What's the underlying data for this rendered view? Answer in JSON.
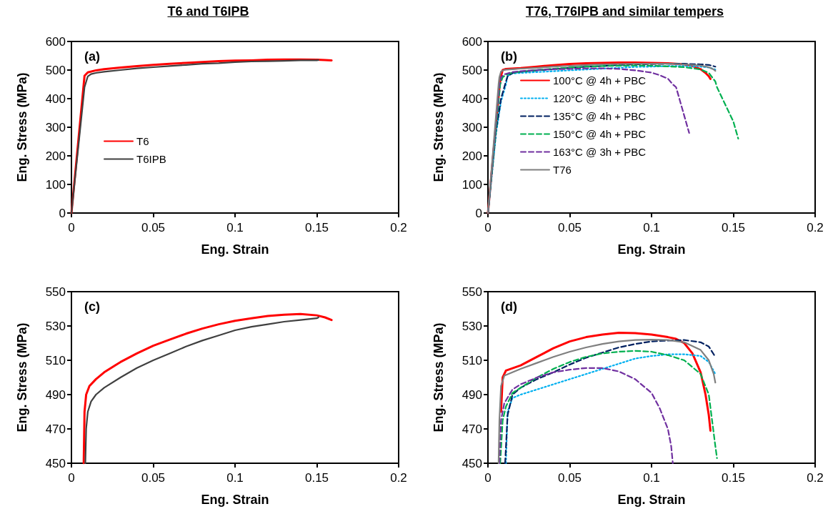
{
  "chart_data": [
    {
      "type": "line",
      "title": "T6 and T6IPB",
      "xlabel": "Eng. Strain",
      "ylabel": "Eng. Stress (MPa)",
      "annotations": [
        "(a)"
      ],
      "xlim": [
        0,
        0.2
      ],
      "xticks": [
        0,
        0.05,
        0.1,
        0.15,
        0.2
      ],
      "ylim": [
        0,
        600
      ],
      "yticks": [
        0,
        100,
        200,
        300,
        400,
        500,
        600
      ],
      "grid": false,
      "legend": "bottom left",
      "marker": "none",
      "series": [
        {
          "name": "T6",
          "color": "#ff0000",
          "line_style": "solid",
          "x": [
            0,
            0.008,
            0.01,
            0.015,
            0.02,
            0.03,
            0.04,
            0.05,
            0.06,
            0.07,
            0.08,
            0.09,
            0.1,
            0.11,
            0.12,
            0.13,
            0.14,
            0.15,
            0.155,
            0.159
          ],
          "values": [
            0,
            480,
            492,
            499,
            503,
            509,
            514,
            518,
            522,
            525,
            528,
            531,
            533,
            534,
            536,
            537,
            537,
            536,
            535,
            534
          ]
        },
        {
          "name": "T6IPB",
          "color": "#404040",
          "line_style": "solid",
          "x": [
            0,
            0.008,
            0.01,
            0.012,
            0.015,
            0.02,
            0.03,
            0.04,
            0.05,
            0.06,
            0.07,
            0.08,
            0.09,
            0.1,
            0.11,
            0.12,
            0.13,
            0.14,
            0.15,
            0.151
          ],
          "values": [
            0,
            440,
            478,
            486,
            490,
            494,
            500,
            506,
            510,
            514,
            518,
            522,
            524,
            528,
            530,
            531,
            532,
            534,
            534,
            535
          ]
        }
      ]
    },
    {
      "type": "line",
      "title": "T76, T76IPB and similar tempers",
      "xlabel": "Eng. Strain",
      "ylabel": "Eng. Stress (MPa)",
      "annotations": [
        "(b)"
      ],
      "xlim": [
        0,
        0.2
      ],
      "xticks": [
        0,
        0.05,
        0.1,
        0.15,
        0.2
      ],
      "ylim": [
        0,
        600
      ],
      "yticks": [
        0,
        100,
        200,
        300,
        400,
        500,
        600
      ],
      "grid": false,
      "legend": "left",
      "marker": "none",
      "series": [
        {
          "name": "100°C @ 4h + PBC",
          "color": "#ff0000",
          "line_style": "solid",
          "x": [
            0,
            0.0072,
            0.008,
            0.009,
            0.011,
            0.02,
            0.03,
            0.04,
            0.05,
            0.06,
            0.07,
            0.08,
            0.09,
            0.1,
            0.11,
            0.115,
            0.12,
            0.125,
            0.13,
            0.133,
            0.135,
            0.136
          ],
          "values": [
            0,
            450,
            480,
            500,
            504,
            507,
            512,
            517,
            521,
            524,
            525,
            526,
            526,
            525,
            524,
            522,
            520,
            514,
            503,
            490,
            478,
            469
          ]
        },
        {
          "name": "120°C @ 4h + PBC",
          "color": "#00b0f0",
          "line_style": "dotted",
          "x": [
            0,
            0.005,
            0.008,
            0.011,
            0.012,
            0.015,
            0.02,
            0.03,
            0.04,
            0.05,
            0.06,
            0.07,
            0.08,
            0.09,
            0.1,
            0.11,
            0.12,
            0.13,
            0.135,
            0.139
          ],
          "values": [
            0,
            280,
            390,
            450,
            480,
            488,
            490,
            493,
            496,
            499,
            502,
            505,
            508,
            511,
            512,
            514,
            514,
            512,
            509,
            502
          ]
        },
        {
          "name": "135°C @ 4h + PBC",
          "color": "#002060",
          "line_style": "dashed",
          "x": [
            0,
            0.005,
            0.008,
            0.0105,
            0.012,
            0.015,
            0.02,
            0.03,
            0.04,
            0.05,
            0.06,
            0.07,
            0.08,
            0.09,
            0.1,
            0.11,
            0.12,
            0.13,
            0.135,
            0.139
          ],
          "values": [
            0,
            290,
            400,
            450,
            478,
            490,
            494,
            499,
            503,
            508,
            512,
            514,
            518,
            520,
            521,
            522,
            522,
            520,
            518,
            512
          ]
        },
        {
          "name": "150°C @ 4h + PBC",
          "color": "#00b050",
          "line_style": "dashed",
          "x": [
            0,
            0.0075,
            0.009,
            0.011,
            0.015,
            0.02,
            0.03,
            0.04,
            0.05,
            0.06,
            0.07,
            0.08,
            0.09,
            0.1,
            0.11,
            0.12,
            0.13,
            0.135,
            0.137,
            0.139,
            0.14,
            0.145,
            0.15,
            0.153
          ],
          "values": [
            0,
            450,
            475,
            483,
            491,
            494,
            500,
            505,
            509,
            512,
            514,
            515,
            516,
            515,
            513,
            510,
            502,
            490,
            475,
            460,
            440,
            380,
            320,
            260
          ]
        },
        {
          "name": "163°C @ 3h + PBC",
          "color": "#7030a0",
          "line_style": "dashed",
          "x": [
            0,
            0.007,
            0.008,
            0.01,
            0.015,
            0.02,
            0.03,
            0.04,
            0.05,
            0.06,
            0.07,
            0.08,
            0.09,
            0.1,
            0.105,
            0.11,
            0.113,
            0.115,
            0.118,
            0.121,
            0.123
          ],
          "values": [
            0,
            450,
            475,
            485,
            493,
            496,
            500,
            503,
            504,
            506,
            506,
            504,
            499,
            491,
            482,
            470,
            450,
            440,
            380,
            320,
            280
          ]
        },
        {
          "name": "T76",
          "color": "#7f7f7f",
          "line_style": "solid",
          "x": [
            0,
            0.0065,
            0.007,
            0.008,
            0.01,
            0.015,
            0.02,
            0.03,
            0.04,
            0.05,
            0.06,
            0.07,
            0.08,
            0.09,
            0.1,
            0.11,
            0.12,
            0.13,
            0.135,
            0.138,
            0.139
          ],
          "values": [
            0,
            450,
            475,
            495,
            501,
            503,
            505,
            508,
            512,
            515,
            518,
            520,
            521,
            522,
            522,
            522,
            520,
            516,
            510,
            502,
            497
          ]
        }
      ]
    },
    {
      "type": "line",
      "xlabel": "Eng. Strain",
      "ylabel": "Eng. Stress (MPa)",
      "annotations": [
        "(c)"
      ],
      "xlim": [
        0,
        0.2
      ],
      "xticks": [
        0,
        0.05,
        0.1,
        0.15,
        0.2
      ],
      "ylim": [
        450,
        550
      ],
      "yticks": [
        450,
        470,
        490,
        510,
        530,
        550
      ],
      "grid": false,
      "marker": "none",
      "series": [
        {
          "color": "#ff0000",
          "line_style": "solid",
          "x": [
            0.0075,
            0.008,
            0.009,
            0.011,
            0.015,
            0.02,
            0.03,
            0.04,
            0.05,
            0.06,
            0.07,
            0.08,
            0.09,
            0.1,
            0.11,
            0.12,
            0.13,
            0.14,
            0.15,
            0.155,
            0.159
          ],
          "values": [
            450,
            480,
            490,
            495,
            499,
            503,
            509,
            514,
            518.5,
            522,
            525.5,
            528.5,
            531,
            533,
            534.5,
            535.8,
            536.6,
            537,
            536.2,
            535,
            533.5
          ]
        },
        {
          "color": "#404040",
          "line_style": "solid",
          "x": [
            0.0085,
            0.009,
            0.01,
            0.012,
            0.015,
            0.02,
            0.03,
            0.04,
            0.05,
            0.06,
            0.07,
            0.08,
            0.09,
            0.1,
            0.11,
            0.12,
            0.13,
            0.14,
            0.15,
            0.151
          ],
          "values": [
            450,
            470,
            480,
            486,
            490,
            494,
            500,
            505.5,
            510,
            514,
            518,
            521.5,
            524.5,
            527.5,
            529.5,
            531,
            532.5,
            533.5,
            534.5,
            535
          ]
        }
      ]
    },
    {
      "type": "line",
      "xlabel": "Eng. Strain",
      "ylabel": "Eng. Stress (MPa)",
      "annotations": [
        "(d)"
      ],
      "xlim": [
        0,
        0.2
      ],
      "xticks": [
        0,
        0.05,
        0.1,
        0.15,
        0.2
      ],
      "ylim": [
        450,
        550
      ],
      "yticks": [
        450,
        470,
        490,
        510,
        530,
        550
      ],
      "grid": false,
      "marker": "none",
      "series": [
        {
          "color": "#ff0000",
          "line_style": "solid",
          "x": [
            0.008,
            0.009,
            0.011,
            0.02,
            0.03,
            0.04,
            0.05,
            0.06,
            0.07,
            0.08,
            0.09,
            0.1,
            0.11,
            0.115,
            0.12,
            0.125,
            0.13,
            0.133,
            0.135,
            0.136
          ],
          "values": [
            480,
            500,
            504,
            507,
            512,
            517,
            521,
            523.5,
            525,
            526,
            525.8,
            525,
            523.5,
            522.5,
            520,
            514,
            503,
            490,
            478,
            469
          ]
        },
        {
          "color": "#00b0f0",
          "line_style": "dotted",
          "x": [
            0.011,
            0.012,
            0.015,
            0.02,
            0.03,
            0.04,
            0.05,
            0.06,
            0.07,
            0.08,
            0.09,
            0.1,
            0.11,
            0.12,
            0.13,
            0.135,
            0.139
          ],
          "values": [
            450,
            480,
            488,
            490,
            493,
            496,
            499,
            502,
            505,
            508,
            511,
            512.5,
            513.5,
            513.5,
            512.5,
            509,
            502
          ]
        },
        {
          "color": "#002060",
          "line_style": "dashed",
          "x": [
            0.0105,
            0.012,
            0.015,
            0.02,
            0.03,
            0.04,
            0.05,
            0.06,
            0.07,
            0.08,
            0.09,
            0.1,
            0.11,
            0.12,
            0.13,
            0.135,
            0.139
          ],
          "values": [
            450,
            478,
            490,
            494,
            499,
            503,
            507.5,
            511.5,
            514.5,
            517.5,
            519.5,
            521,
            521.5,
            521.8,
            520.5,
            518,
            512
          ]
        },
        {
          "color": "#00b050",
          "line_style": "dashed",
          "x": [
            0.0075,
            0.009,
            0.011,
            0.015,
            0.02,
            0.03,
            0.04,
            0.05,
            0.06,
            0.07,
            0.08,
            0.09,
            0.1,
            0.11,
            0.12,
            0.13,
            0.135,
            0.137,
            0.139,
            0.14
          ],
          "values": [
            450,
            475,
            483,
            491,
            494,
            500,
            505,
            509,
            512,
            514,
            515,
            515.5,
            515,
            513,
            510,
            502,
            490,
            475,
            460,
            453
          ]
        },
        {
          "color": "#7030a0",
          "line_style": "dashed",
          "x": [
            0.007,
            0.008,
            0.01,
            0.015,
            0.02,
            0.03,
            0.04,
            0.05,
            0.06,
            0.07,
            0.08,
            0.09,
            0.1,
            0.105,
            0.11,
            0.112,
            0.113
          ],
          "values": [
            450,
            475,
            485,
            493,
            496,
            500,
            503,
            504.5,
            505.5,
            505.5,
            503.5,
            499,
            491,
            482,
            470,
            460,
            450
          ]
        },
        {
          "color": "#7f7f7f",
          "line_style": "solid",
          "x": [
            0.0065,
            0.007,
            0.008,
            0.01,
            0.015,
            0.02,
            0.03,
            0.04,
            0.05,
            0.06,
            0.07,
            0.08,
            0.09,
            0.1,
            0.11,
            0.12,
            0.13,
            0.135,
            0.138,
            0.139
          ],
          "values": [
            450,
            475,
            495,
            501,
            503,
            505,
            508.5,
            512,
            515,
            517.5,
            519.5,
            521,
            521.8,
            522,
            521.8,
            520.5,
            516,
            510,
            502,
            497
          ]
        }
      ]
    }
  ]
}
